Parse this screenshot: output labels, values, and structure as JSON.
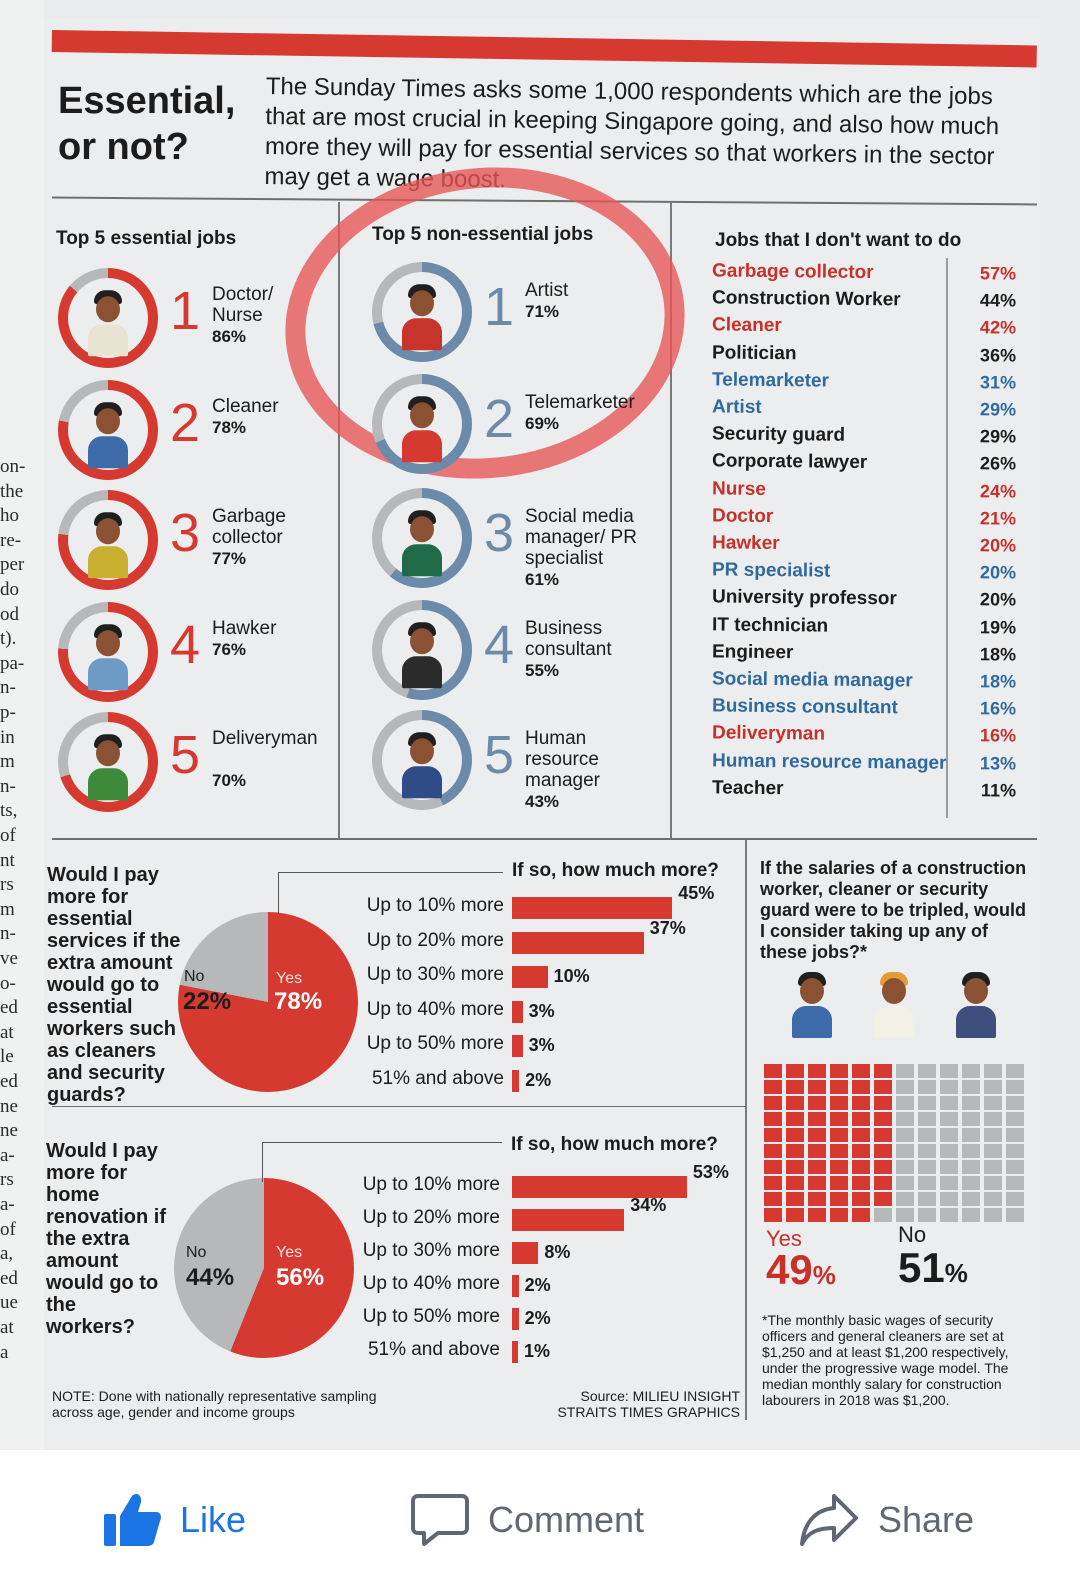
{
  "article": {
    "headline": "Essential, or not?",
    "intro": "The Sunday Times asks some 1,000 respondents which are the jobs that are most crucial in keeping Singapore going, and also how much more they will pay for essential services so that workers in the sector may get a wage boost."
  },
  "margin_text": [
    "on-",
    "the",
    "ho",
    "re-",
    "per",
    "do",
    "od",
    "t).",
    "pa-",
    "n-",
    "p-",
    "in",
    "m",
    "n-",
    "ts,",
    "of",
    "nt",
    "rs",
    "m",
    "n-",
    "ve",
    "o-",
    "ed",
    "at",
    "le",
    "ed",
    "ne",
    "ne",
    "a-",
    "rs",
    "a-",
    "of",
    "a,",
    "ed",
    "ue",
    "at",
    "a"
  ],
  "essential": {
    "heading": "Top 5 essential jobs",
    "items": [
      {
        "rank": "1",
        "name": "Doctor/ Nurse",
        "pct": "86%"
      },
      {
        "rank": "2",
        "name": "Cleaner",
        "pct": "78%"
      },
      {
        "rank": "3",
        "name": "Garbage collector",
        "pct": "77%"
      },
      {
        "rank": "4",
        "name": "Hawker",
        "pct": "76%"
      },
      {
        "rank": "5",
        "name": "Deliveryman",
        "pct": "70%"
      }
    ]
  },
  "non_essential": {
    "heading": "Top 5 non-essential jobs",
    "items": [
      {
        "rank": "1",
        "name": "Artist",
        "pct": "71%"
      },
      {
        "rank": "2",
        "name": "Telemarketer",
        "pct": "69%"
      },
      {
        "rank": "3",
        "name": "Social media manager/ PR specialist",
        "pct": "61%"
      },
      {
        "rank": "4",
        "name": "Business consultant",
        "pct": "55%"
      },
      {
        "rank": "5",
        "name": "Human resource manager",
        "pct": "43%"
      }
    ]
  },
  "dont_want": {
    "heading": "Jobs that I don't want to do",
    "items": [
      {
        "name": "Garbage collector",
        "pct": "57%",
        "color": "red"
      },
      {
        "name": "Construction Worker",
        "pct": "44%",
        "color": "black"
      },
      {
        "name": "Cleaner",
        "pct": "42%",
        "color": "red"
      },
      {
        "name": "Politician",
        "pct": "36%",
        "color": "black"
      },
      {
        "name": "Telemarketer",
        "pct": "31%",
        "color": "blue"
      },
      {
        "name": "Artist",
        "pct": "29%",
        "color": "blue"
      },
      {
        "name": "Security guard",
        "pct": "29%",
        "color": "black"
      },
      {
        "name": "Corporate lawyer",
        "pct": "26%",
        "color": "black"
      },
      {
        "name": "Nurse",
        "pct": "24%",
        "color": "red"
      },
      {
        "name": "Doctor",
        "pct": "21%",
        "color": "red"
      },
      {
        "name": "Hawker",
        "pct": "20%",
        "color": "red"
      },
      {
        "name": "PR specialist",
        "pct": "20%",
        "color": "blue"
      },
      {
        "name": "University professor",
        "pct": "20%",
        "color": "black"
      },
      {
        "name": "IT technician",
        "pct": "19%",
        "color": "black"
      },
      {
        "name": "Engineer",
        "pct": "18%",
        "color": "black"
      },
      {
        "name": "Social media manager",
        "pct": "18%",
        "color": "blue"
      },
      {
        "name": "Business consultant",
        "pct": "16%",
        "color": "blue"
      },
      {
        "name": "Deliveryman",
        "pct": "16%",
        "color": "red"
      },
      {
        "name": "Human resource manager",
        "pct": "13%",
        "color": "blue"
      },
      {
        "name": "Teacher",
        "pct": "11%",
        "color": "black"
      }
    ]
  },
  "q1": {
    "question": "Would I pay more for essential services if the extra amount would go to essential workers such as cleaners and security guards?",
    "no_label": "No",
    "no_pct": "22%",
    "yes_label": "Yes",
    "yes_pct": "78%",
    "sub_heading": "If so, how much more?",
    "bars": [
      {
        "label": "Up to 10% more",
        "value": 45,
        "text": "45%"
      },
      {
        "label": "Up to 20% more",
        "value": 37,
        "text": "37%"
      },
      {
        "label": "Up to 30% more",
        "value": 10,
        "text": "10%"
      },
      {
        "label": "Up to 40% more",
        "value": 3,
        "text": "3%"
      },
      {
        "label": "Up to 50% more",
        "value": 3,
        "text": "3%"
      },
      {
        "label": "51% and above",
        "value": 2,
        "text": "2%"
      }
    ]
  },
  "q2": {
    "question": "Would I pay more for home renovation if the extra amount would go to the workers?",
    "no_label": "No",
    "no_pct": "44%",
    "yes_label": "Yes",
    "yes_pct": "56%",
    "sub_heading": "If so, how much more?",
    "bars": [
      {
        "label": "Up to 10% more",
        "value": 53,
        "text": "53%"
      },
      {
        "label": "Up to 20% more",
        "value": 34,
        "text": "34%"
      },
      {
        "label": "Up to 30% more",
        "value": 8,
        "text": "8%"
      },
      {
        "label": "Up to 40% more",
        "value": 2,
        "text": "2%"
      },
      {
        "label": "Up to 50% more",
        "value": 2,
        "text": "2%"
      },
      {
        "label": "51% and above",
        "value": 1,
        "text": "1%"
      }
    ]
  },
  "q3": {
    "question": "If the salaries of a construction worker, cleaner or security guard were to be tripled, would I consider taking up any of these jobs?*",
    "yes_label": "Yes",
    "yes_pct": "49",
    "no_label": "No",
    "no_pct": "51",
    "pct_sign": "%",
    "yes_share": 0.49,
    "footnote": "*The monthly basic wages of security officers and general cleaners are set at $1,250 and at least $1,200 respectively, under the progressive wage model. The median monthly salary for construction labourers in 2018 was $1,200."
  },
  "footer": {
    "note": "NOTE: Done with nationally representative sampling across age, gender and income groups",
    "source": "Source: MILIEU INSIGHT STRAITS TIMES GRAPHICS"
  },
  "colors": {
    "red": "#d5392f",
    "blue": "#6c8aa9",
    "grey": "#b6b8ba",
    "like_blue": "#1b74e4"
  },
  "actions": {
    "like": "Like",
    "comment": "Comment",
    "share": "Share"
  }
}
